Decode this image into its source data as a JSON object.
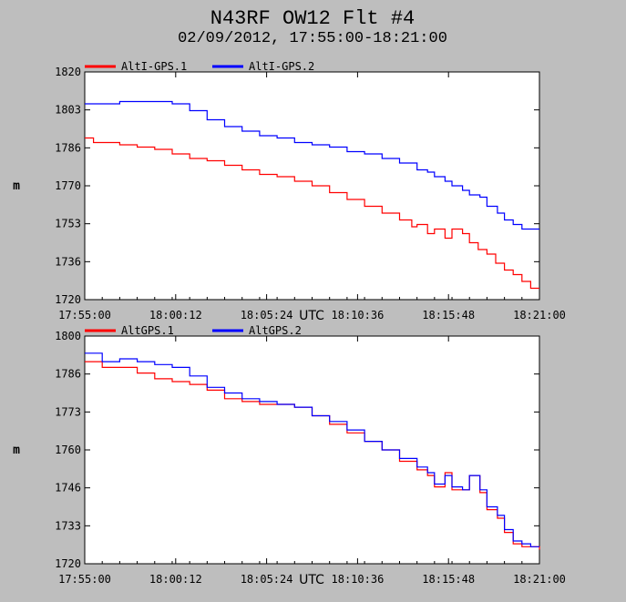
{
  "title": "N43RF OW12 Flt #4",
  "subtitle": "02/09/2012, 17:55:00-18:21:00",
  "x_axis_label": "UTC",
  "colors": {
    "background": "#bebebe",
    "plot_bg": "#ffffff",
    "series1": "#ff0000",
    "series2": "#0000ff"
  },
  "chart_data": [
    {
      "type": "line",
      "ylabel": "m",
      "xlabel": "UTC",
      "ylim": [
        1720,
        1820
      ],
      "yticks": [
        "1720",
        "1736",
        "1753",
        "1770",
        "1786",
        "1803",
        "1820"
      ],
      "xlim": [
        "17:55:00",
        "18:21:00"
      ],
      "xticks": [
        "17:55:00",
        "18:00:12",
        "18:05:24",
        "18:10:36",
        "18:15:48",
        "18:21:00"
      ],
      "grid": false,
      "legend_position": "top-left",
      "series": [
        {
          "name": "AltI-GPS.1",
          "color": "#ff0000",
          "x": [
            0,
            0.5,
            1,
            2,
            3,
            4,
            5,
            6,
            7,
            8,
            9,
            10,
            11,
            12,
            13,
            14,
            15,
            16,
            17,
            18,
            18.7,
            19,
            19.6,
            20,
            20.6,
            21,
            21.6,
            22,
            22.5,
            23,
            23.5,
            24,
            24.5,
            25,
            25.5,
            26
          ],
          "y": [
            1791,
            1789,
            1789,
            1788,
            1787,
            1786,
            1784,
            1782,
            1781,
            1779,
            1777,
            1775,
            1774,
            1772,
            1770,
            1767,
            1764,
            1761,
            1758,
            1755,
            1752,
            1753,
            1749,
            1751,
            1747,
            1751,
            1749,
            1745,
            1742,
            1740,
            1736,
            1733,
            1731,
            1728,
            1725,
            1725
          ]
        },
        {
          "name": "AltI-GPS.2",
          "color": "#0000ff",
          "x": [
            0,
            1,
            2,
            3,
            4,
            5,
            6,
            7,
            8,
            9,
            10,
            11,
            12,
            13,
            14,
            15,
            16,
            17,
            18,
            19,
            19.6,
            20,
            20.6,
            21,
            21.6,
            22,
            22.6,
            23,
            23.6,
            24,
            24.5,
            25,
            25.5,
            26
          ],
          "y": [
            1806,
            1806,
            1807,
            1807,
            1807,
            1806,
            1803,
            1799,
            1796,
            1794,
            1792,
            1791,
            1789,
            1788,
            1787,
            1785,
            1784,
            1782,
            1780,
            1777,
            1776,
            1774,
            1772,
            1770,
            1768,
            1766,
            1765,
            1761,
            1758,
            1755,
            1753,
            1751,
            1751,
            1751
          ]
        }
      ]
    },
    {
      "type": "line",
      "ylabel": "m",
      "xlabel": "UTC",
      "ylim": [
        1720,
        1800
      ],
      "yticks": [
        "1720",
        "1733",
        "1746",
        "1760",
        "1773",
        "1786",
        "1800"
      ],
      "xlim": [
        "17:55:00",
        "18:21:00"
      ],
      "xticks": [
        "17:55:00",
        "18:00:12",
        "18:05:24",
        "18:10:36",
        "18:15:48",
        "18:21:00"
      ],
      "grid": false,
      "legend_position": "top-left",
      "series": [
        {
          "name": "AltGPS.1",
          "color": "#ff0000",
          "x": [
            0,
            1,
            2,
            3,
            4,
            5,
            6,
            7,
            8,
            9,
            10,
            11,
            12,
            13,
            14,
            15,
            16,
            17,
            18,
            19,
            19.6,
            20,
            20.6,
            21,
            21.6,
            22,
            22.6,
            23,
            23.6,
            24,
            24.5,
            25,
            25.5,
            26
          ],
          "y": [
            1791,
            1789,
            1789,
            1787,
            1785,
            1784,
            1783,
            1781,
            1778,
            1777,
            1776,
            1776,
            1775,
            1772,
            1769,
            1766,
            1763,
            1760,
            1756,
            1753,
            1751,
            1747,
            1752,
            1746,
            1746,
            1751,
            1745,
            1739,
            1736,
            1731,
            1727,
            1726,
            1726,
            1725
          ]
        },
        {
          "name": "AltGPS.2",
          "color": "#0000ff",
          "x": [
            0,
            1,
            2,
            3,
            4,
            5,
            6,
            7,
            8,
            9,
            10,
            11,
            12,
            13,
            14,
            15,
            16,
            17,
            18,
            19,
            19.6,
            20,
            20.6,
            21,
            21.6,
            22,
            22.6,
            23,
            23.6,
            24,
            24.5,
            25,
            25.5,
            26
          ],
          "y": [
            1794,
            1791,
            1792,
            1791,
            1790,
            1789,
            1786,
            1782,
            1780,
            1778,
            1777,
            1776,
            1775,
            1772,
            1770,
            1767,
            1763,
            1760,
            1757,
            1754,
            1752,
            1748,
            1751,
            1747,
            1746,
            1751,
            1746,
            1740,
            1737,
            1732,
            1728,
            1727,
            1726,
            1726
          ]
        }
      ]
    }
  ]
}
